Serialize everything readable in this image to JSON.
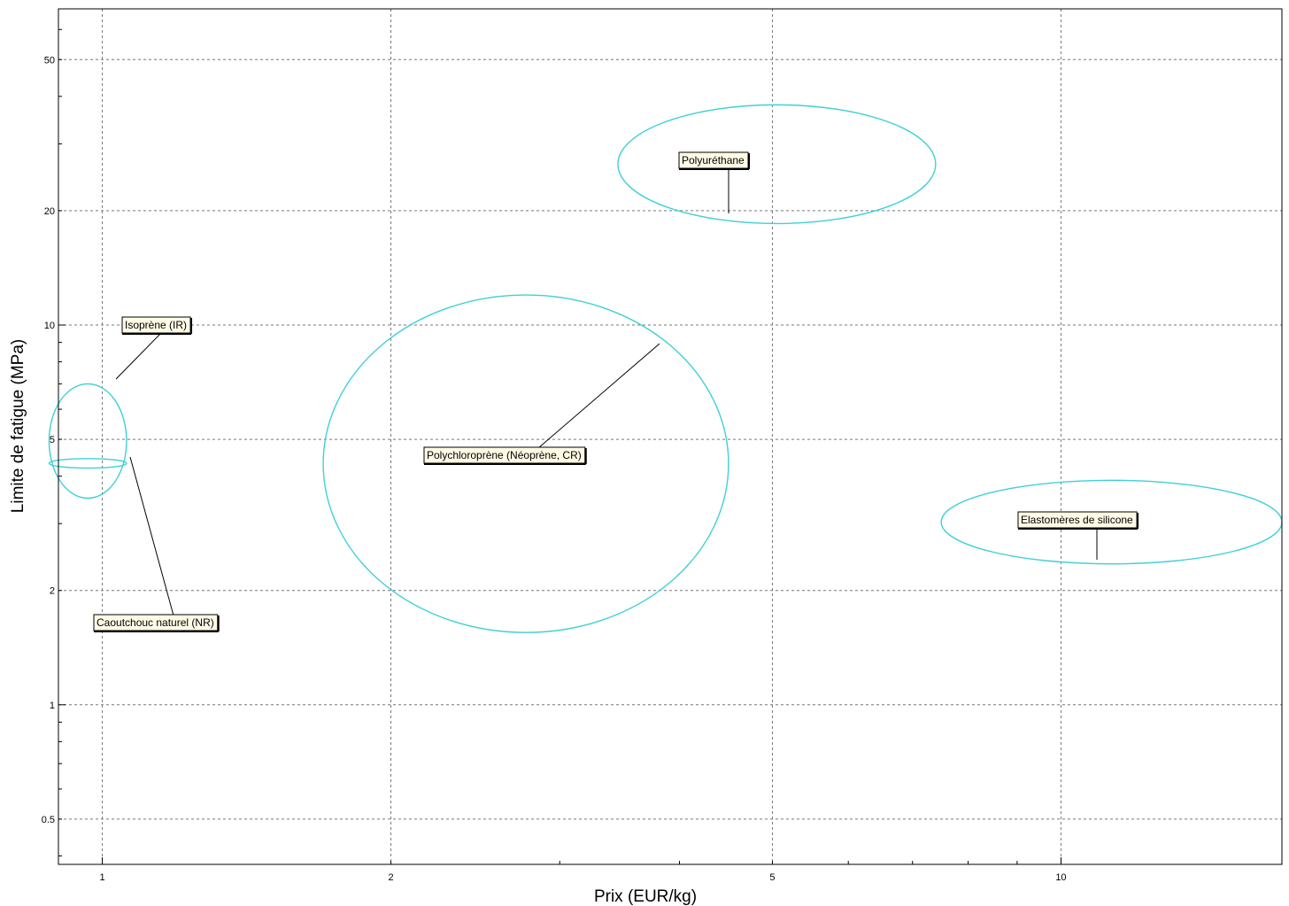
{
  "chart_data": {
    "type": "scatter",
    "subtype": "bubble-ellipses",
    "title": "",
    "xlabel": "Prix (EUR/kg)",
    "ylabel": "Limite de fatigue (MPa)",
    "xscale": "log",
    "yscale": "log",
    "xlim": [
      0.9,
      17
    ],
    "ylim": [
      0.38,
      68
    ],
    "grid": true,
    "x_ticks": [
      {
        "value": 1,
        "label": "1"
      },
      {
        "value": 2,
        "label": "2"
      },
      {
        "value": 5,
        "label": "5"
      },
      {
        "value": 10,
        "label": "10"
      }
    ],
    "y_ticks": [
      {
        "value": 0.5,
        "label": "0.5"
      },
      {
        "value": 1,
        "label": "1"
      },
      {
        "value": 2,
        "label": "2"
      },
      {
        "value": 5,
        "label": "5"
      },
      {
        "value": 10,
        "label": "10"
      },
      {
        "value": 20,
        "label": "20"
      },
      {
        "value": 50,
        "label": "50"
      }
    ],
    "series_color": "#3ed0d6",
    "materials": [
      {
        "name": "Polyuréthane",
        "x_range": [
          3.45,
          7.4
        ],
        "y_range": [
          18.5,
          38
        ]
      },
      {
        "name": "Polychloroprène (Néoprène, CR)",
        "x_range": [
          1.7,
          4.5
        ],
        "y_range": [
          1.55,
          12
        ]
      },
      {
        "name": "Elastomères de silicone",
        "x_range": [
          7.5,
          17
        ],
        "y_range": [
          2.35,
          3.9
        ]
      },
      {
        "name": "Isoprène (IR)",
        "x_range": [
          0.88,
          1.06
        ],
        "y_range": [
          3.5,
          7
        ]
      },
      {
        "name": "Caoutchouc naturel (NR)",
        "x_range": [
          0.88,
          1.06
        ],
        "y_range": [
          4.2,
          4.45
        ]
      }
    ]
  }
}
